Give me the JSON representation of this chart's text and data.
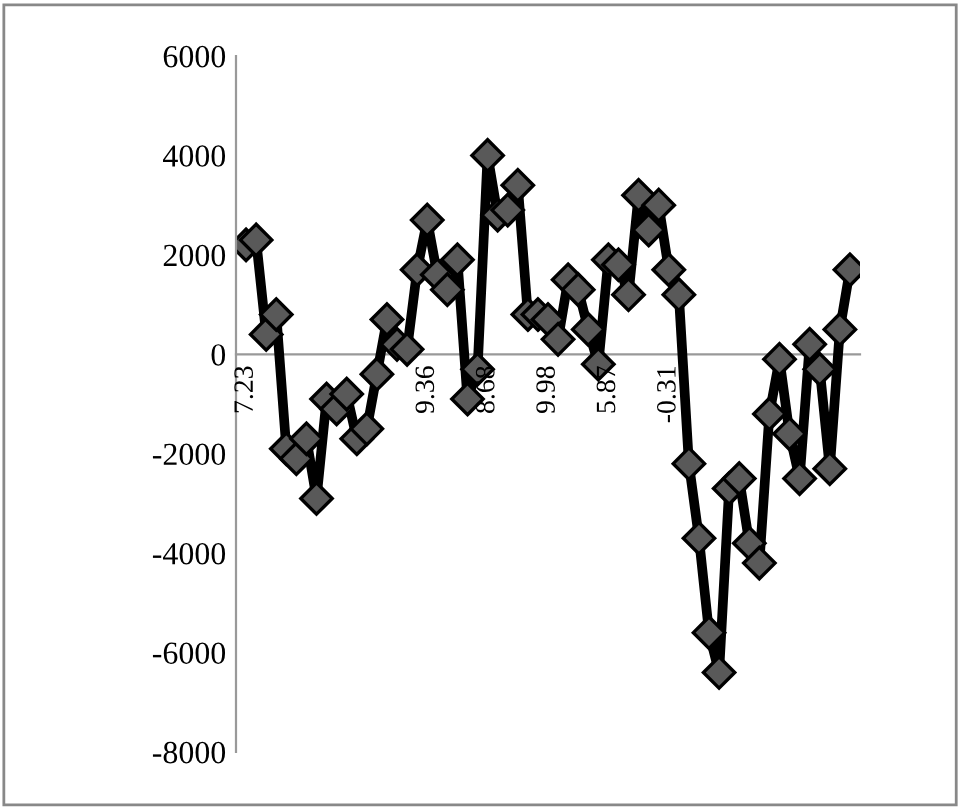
{
  "chart_data": {
    "type": "line",
    "categories": [
      "7.23",
      null,
      null,
      null,
      null,
      null,
      null,
      null,
      null,
      null,
      null,
      null,
      null,
      null,
      null,
      null,
      null,
      null,
      "9.36",
      null,
      null,
      null,
      null,
      null,
      "8.68",
      null,
      null,
      null,
      null,
      null,
      "9.98",
      null,
      null,
      null,
      null,
      null,
      "5.87",
      null,
      null,
      null,
      null,
      null,
      "-0.31",
      null,
      null,
      null,
      null,
      null,
      null,
      null,
      null,
      null,
      null,
      null,
      null,
      null,
      null,
      null,
      null,
      null,
      null
    ],
    "series": [
      {
        "color": "#000000",
        "values": [
          2200,
          2300,
          400,
          800,
          -1900,
          -2100,
          -1700,
          -2900,
          -900,
          -1100,
          -800,
          -1700,
          -1500,
          -400,
          700,
          200,
          100,
          1700,
          2700,
          1600,
          1300,
          1900,
          -900,
          -300,
          4000,
          2800,
          2900,
          3400,
          800,
          800,
          700,
          300,
          1500,
          1300,
          500,
          -200,
          1900,
          1800,
          1200,
          3200,
          2500,
          3000,
          1700,
          1200,
          -2200,
          -3700,
          -5600,
          -6400,
          -2700,
          -2500,
          -3800,
          -4200,
          -1200,
          -100,
          -1600,
          -2500,
          200,
          -300,
          -2300,
          500,
          1700
        ]
      }
    ],
    "ylim": [
      -8000,
      6000
    ],
    "yticks": [
      -8000,
      -6000,
      -4000,
      -2000,
      0,
      2000,
      4000,
      6000
    ],
    "marker": "diamond",
    "line_style": "solid",
    "grid": false,
    "legend": false
  }
}
